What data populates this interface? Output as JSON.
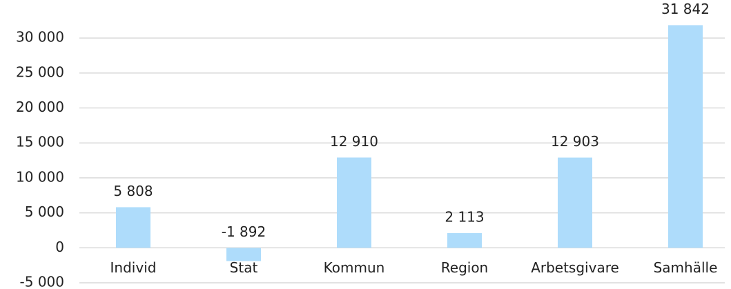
{
  "chart_data": {
    "type": "bar",
    "categories": [
      "Individ",
      "Stat",
      "Kommun",
      "Region",
      "Arbetsgivare",
      "Samhälle"
    ],
    "values": [
      5808,
      -1892,
      12910,
      2113,
      12903,
      31842
    ],
    "value_labels": [
      "5 808",
      "-1 892",
      "12 910",
      "2 113",
      "12 903",
      "31 842"
    ],
    "color": "#aedcfb",
    "ylim": [
      -5000,
      32500
    ],
    "yticks": [
      {
        "value": -5000,
        "label": "-5 000"
      },
      0,
      {
        "value": 5000,
        "label": "5 000"
      },
      {
        "value": 10000,
        "label": "10 000"
      },
      {
        "value": 15000,
        "label": "15 000"
      },
      {
        "value": 20000,
        "label": "20 000"
      },
      {
        "value": 25000,
        "label": "25 000"
      },
      {
        "value": 30000,
        "label": "30 000"
      }
    ],
    "grid": true
  }
}
